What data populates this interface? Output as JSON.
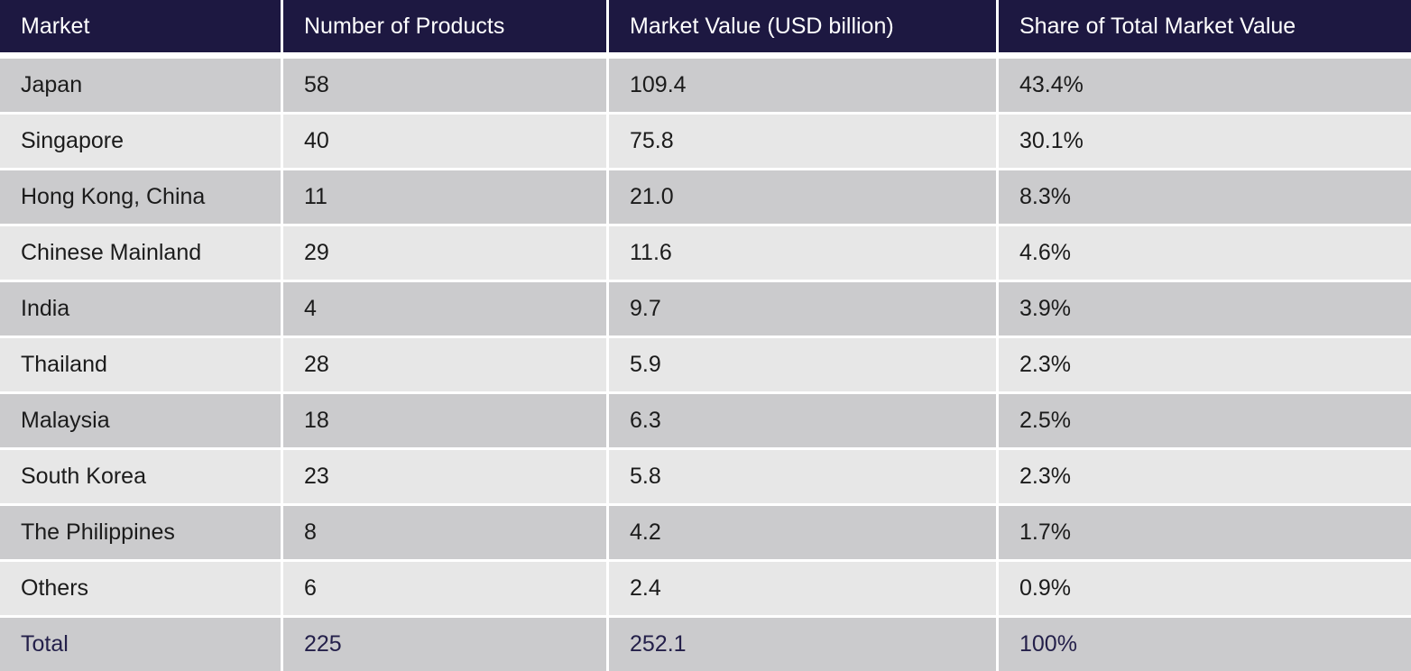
{
  "table": {
    "headers": [
      "Market",
      "Number of Products",
      "Market Value (USD billion)",
      "Share of Total Market Value"
    ],
    "rows": [
      [
        "Japan",
        "58",
        "109.4",
        "43.4%"
      ],
      [
        "Singapore",
        "40",
        "75.8",
        "30.1%"
      ],
      [
        "Hong Kong, China",
        "11",
        "21.0",
        "8.3%"
      ],
      [
        "Chinese Mainland",
        "29",
        "11.6",
        "4.6%"
      ],
      [
        "India",
        "4",
        "9.7",
        "3.9%"
      ],
      [
        "Thailand",
        "28",
        "5.9",
        "2.3%"
      ],
      [
        "Malaysia",
        "18",
        "6.3",
        "2.5%"
      ],
      [
        "South Korea",
        "23",
        "5.8",
        "2.3%"
      ],
      [
        "The Philippines",
        "8",
        "4.2",
        "1.7%"
      ],
      [
        "Others",
        "6",
        "2.4",
        "0.9%"
      ]
    ],
    "total": [
      "Total",
      "225",
      "252.1",
      "100%"
    ]
  },
  "colors": {
    "header_bg": "#1d1841",
    "header_text": "#ffffff",
    "row_dark": "#cbcbcd",
    "row_light": "#e7e7e7",
    "total_text": "#24204a"
  }
}
